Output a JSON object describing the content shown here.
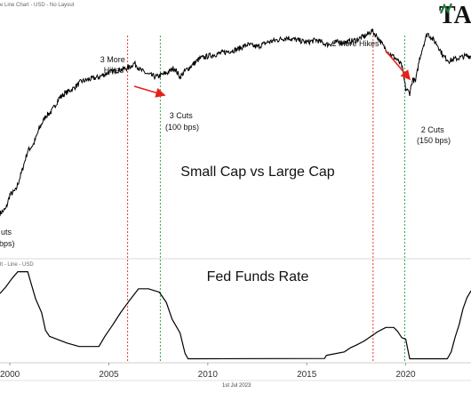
{
  "header": {
    "main_caption": "e Line Chart - USD - No Layout",
    "lower_caption": "lt - Line - USD",
    "footer_date": "1st Jul 2023",
    "logo_text": "TA"
  },
  "colors": {
    "line": "#000000",
    "hike_line": "#e8322c",
    "cut_line": "#2ea34a",
    "arrow": "#e8201c",
    "logo_green": "#1d7a3a"
  },
  "chart_data": [
    {
      "type": "line",
      "title": "Small Cap vs Large Cap",
      "x_range": [
        1999.5,
        2023.3
      ],
      "series": [
        {
          "x": [
            1999.5,
            1999.8,
            2000.0,
            2000.3,
            2000.6,
            2000.9,
            2001.2,
            2001.5,
            2001.8,
            2002.1,
            2002.5,
            2002.8,
            2003.2,
            2003.6,
            2004.0,
            2004.5,
            2005.0,
            2005.5,
            2006.0,
            2006.3,
            2006.6,
            2007.0,
            2007.4,
            2007.7,
            2008.0,
            2008.3,
            2008.6,
            2008.9,
            2009.2,
            2009.6,
            2010.0,
            2010.5,
            2011.0,
            2011.5,
            2012.0,
            2012.5,
            2013.0,
            2013.5,
            2014.0,
            2014.5,
            2015.0,
            2015.5,
            2016.0,
            2016.5,
            2017.0,
            2017.5,
            2018.0,
            2018.3,
            2018.6,
            2018.9,
            2019.2,
            2019.5,
            2019.8,
            2020.0,
            2020.2,
            2020.35,
            2020.5,
            2020.7,
            2020.9,
            2021.1,
            2021.3,
            2021.6,
            2021.9,
            2022.2,
            2022.6,
            2023.0,
            2023.3
          ],
          "y": [
            20,
            22,
            28,
            30,
            38,
            47,
            50,
            57,
            62,
            64,
            70,
            72,
            74,
            77,
            78,
            79,
            81,
            82,
            83,
            85,
            82,
            80,
            79,
            80,
            81,
            83,
            79,
            82,
            84,
            87,
            88,
            89,
            90,
            91,
            93,
            92,
            94,
            95,
            96,
            95,
            94,
            95,
            93,
            94,
            94,
            95,
            97,
            99,
            96,
            92,
            89,
            87,
            84,
            74,
            72,
            78,
            77,
            87,
            93,
            98,
            96,
            93,
            88,
            86,
            87,
            88,
            88
          ]
        }
      ],
      "annotations": [
        {
          "text": "3 More Hikes",
          "lines": [
            "3 More",
            "Hikes"
          ]
        },
        {
          "text": "3 Cuts (100 bps)",
          "lines": [
            "3 Cuts",
            "(100 bps)"
          ]
        },
        {
          "text": "2 More Hikes",
          "lines": [
            "2 More Hikes"
          ]
        },
        {
          "text": "2 Cuts (150 bps)",
          "lines": [
            "2 Cuts",
            "(150 bps)"
          ]
        },
        {
          "text": "uts",
          "lines": [
            "uts"
          ]
        },
        {
          "text": "bps)",
          "lines": [
            "bps)"
          ]
        }
      ],
      "vertical_markers": [
        {
          "x": 2005.95,
          "kind": "hike"
        },
        {
          "x": 2007.6,
          "kind": "cut"
        },
        {
          "x": 2018.35,
          "kind": "hike"
        },
        {
          "x": 2019.95,
          "kind": "cut"
        }
      ]
    },
    {
      "type": "line",
      "title": "Fed Funds Rate",
      "xlabel": "",
      "ylabel": "",
      "x_range": [
        1999.5,
        2023.3
      ],
      "x_ticks": [
        2000,
        2005,
        2010,
        2015,
        2020
      ],
      "series": [
        {
          "x": [
            1999.5,
            1999.8,
            2000.1,
            2000.4,
            2000.9,
            2001.0,
            2001.3,
            2001.6,
            2001.8,
            2002.0,
            2002.9,
            2003.5,
            2004.5,
            2004.8,
            2005.2,
            2005.6,
            2006.0,
            2006.5,
            2007.0,
            2007.55,
            2007.9,
            2008.2,
            2008.6,
            2008.85,
            2009.0,
            2015.9,
            2016.0,
            2016.9,
            2017.2,
            2017.5,
            2017.9,
            2018.2,
            2018.6,
            2019.0,
            2019.4,
            2019.6,
            2019.8,
            2020.0,
            2020.2,
            2022.1,
            2022.3,
            2022.5,
            2022.7,
            2022.9,
            2023.1,
            2023.3
          ],
          "y": [
            4.9,
            5.4,
            6.0,
            6.5,
            6.5,
            6.0,
            4.5,
            3.5,
            2.2,
            1.75,
            1.25,
            1.0,
            1.0,
            1.75,
            2.6,
            3.5,
            4.3,
            5.25,
            5.25,
            5.0,
            4.25,
            3.0,
            2.0,
            0.5,
            0.1,
            0.12,
            0.35,
            0.6,
            0.9,
            1.1,
            1.4,
            1.7,
            2.1,
            2.4,
            2.4,
            2.1,
            1.65,
            1.55,
            0.1,
            0.1,
            0.6,
            1.7,
            2.6,
            3.8,
            4.6,
            5.1
          ]
        }
      ],
      "ylim": [
        0,
        7
      ],
      "vertical_markers": [
        {
          "x": 2005.95,
          "kind": "hike"
        },
        {
          "x": 2007.6,
          "kind": "cut"
        },
        {
          "x": 2018.35,
          "kind": "hike"
        },
        {
          "x": 2019.95,
          "kind": "cut"
        }
      ]
    }
  ]
}
